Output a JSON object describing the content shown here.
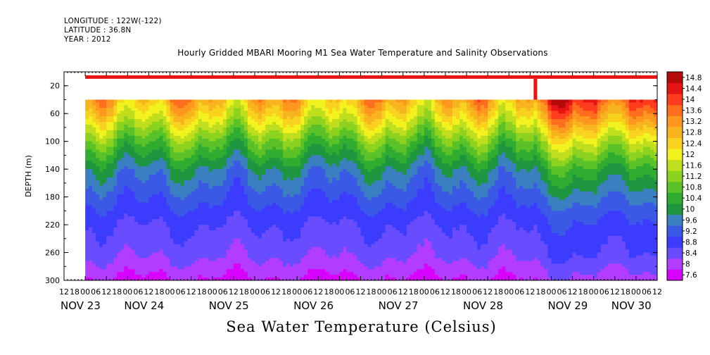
{
  "header": {
    "longitude": "LONGITUDE : 122W(-122)",
    "latitude": "LATITUDE : 36.8N",
    "year": "YEAR : 2012"
  },
  "chart_data": {
    "type": "heatmap",
    "title": "Hourly Gridded MBARI Mooring M1 Sea Water Temperature and Salinity Observations",
    "xlabel": "Sea Water Temperature (Celsius)",
    "ylabel": "DEPTH (m)",
    "x_unit": "hours since NOV 23 12:00",
    "xlim": [
      0,
      168
    ],
    "ylim": [
      300,
      0
    ],
    "y_ticks": [
      20,
      60,
      100,
      140,
      180,
      220,
      260,
      300
    ],
    "x_hour_ticks": [
      "12",
      "18",
      "00",
      "06",
      "12",
      "18",
      "00",
      "06",
      "12",
      "18",
      "00",
      "06",
      "12",
      "18",
      "00",
      "06",
      "12",
      "18",
      "00",
      "06",
      "12",
      "18",
      "00",
      "06",
      "12",
      "18",
      "00",
      "06",
      "12",
      "18",
      "00",
      "06",
      "12",
      "18",
      "00",
      "06",
      "12",
      "18",
      "00",
      "06",
      "12",
      "18",
      "00",
      "06",
      "12",
      "18",
      "00",
      "06",
      "12",
      "18",
      "00",
      "06",
      "12",
      "18",
      "00",
      "06",
      "12"
    ],
    "x_day_labels": [
      {
        "label": "NOV 23",
        "x": 0
      },
      {
        "label": "NOV 24",
        "x": 18
      },
      {
        "label": "NOV 25",
        "x": 42
      },
      {
        "label": "NOV 26",
        "x": 66
      },
      {
        "label": "NOV 27",
        "x": 90
      },
      {
        "label": "NOV 28",
        "x": 114
      },
      {
        "label": "NOV 29",
        "x": 138
      },
      {
        "label": "NOV 30",
        "x": 156
      }
    ],
    "data_start_x": 6,
    "surface_band_depth": [
      5,
      10
    ],
    "gap_depth": [
      10,
      40
    ],
    "gap_filled_column_x": 133,
    "levels": [
      7.6,
      8,
      8.4,
      8.8,
      9.2,
      9.6,
      10,
      10.4,
      10.8,
      11.2,
      11.6,
      12,
      12.4,
      12.8,
      13.2,
      13.6,
      14,
      14.4,
      14.8
    ],
    "level_labels": [
      "14.8",
      "14.4",
      "14",
      "13.6",
      "13.2",
      "12.8",
      "12.4",
      "12",
      "11.6",
      "11.2",
      "10.8",
      "10.4",
      "10",
      "9.6",
      "9.2",
      "8.8",
      "8.4",
      "8",
      "7.6"
    ],
    "colors": [
      "#d800ff",
      "#b23cff",
      "#6a4cff",
      "#3c3cff",
      "#3a5ae6",
      "#3a80c0",
      "#1e9640",
      "#30ac30",
      "#5ac228",
      "#8cd21e",
      "#bede1e",
      "#f2f21e",
      "#f8d21e",
      "#f8b41e",
      "#ff961e",
      "#ff6e1e",
      "#ff3c1e",
      "#e61414",
      "#b40a0a"
    ],
    "profile_samples": [
      {
        "depth": 40,
        "temperature": 13.0
      },
      {
        "depth": 60,
        "temperature": 12.4
      },
      {
        "depth": 100,
        "temperature": 11.0
      },
      {
        "depth": 140,
        "temperature": 9.9
      },
      {
        "depth": 180,
        "temperature": 9.3
      },
      {
        "depth": 220,
        "temperature": 8.8
      },
      {
        "depth": 260,
        "temperature": 8.5
      },
      {
        "depth": 300,
        "temperature": 7.9
      }
    ],
    "surface_temperature": 14.6
  }
}
